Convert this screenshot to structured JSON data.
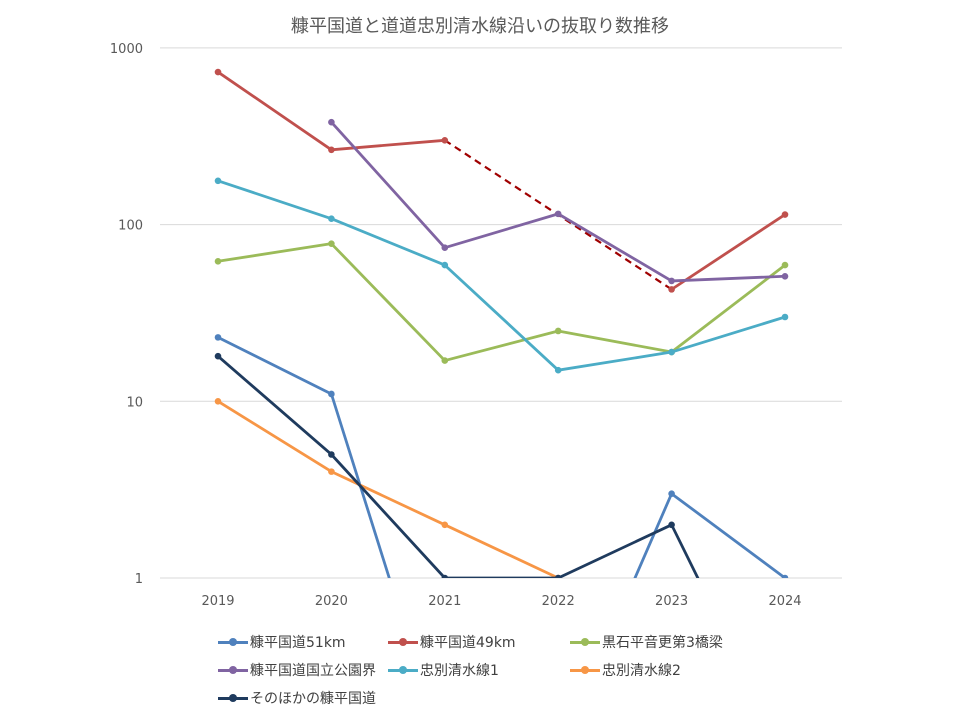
{
  "chart_data": {
    "type": "line",
    "title": "糠平国道と道道忠別清水線沿いの抜取り数推移",
    "xlabel": "",
    "ylabel": "",
    "yscale": "log",
    "ylim": [
      1,
      1000
    ],
    "y_ticks": [
      "1",
      "10",
      "100",
      "1000"
    ],
    "y_tick_values": [
      1,
      10,
      100,
      1000
    ],
    "categories": [
      "2019",
      "2020",
      "2021",
      "2022",
      "2023",
      "2024"
    ],
    "grid": true,
    "legend_position": "bottom",
    "series": [
      {
        "name": "糠平国道51km",
        "color": "#4f81bd",
        "values": [
          23,
          11,
          0,
          0,
          3,
          1
        ]
      },
      {
        "name": "糠平国道49km",
        "color": "#c0504d",
        "values": [
          730,
          265,
          300,
          null,
          43,
          114
        ]
      },
      {
        "name": "黒石平音更第3橋梁",
        "color": "#9bbb59",
        "values": [
          62,
          78,
          17,
          25,
          19,
          59
        ]
      },
      {
        "name": "糠平国道国立公園界",
        "color": "#8064a2",
        "values": [
          null,
          380,
          74,
          115,
          48,
          51
        ]
      },
      {
        "name": "忠別清水線1",
        "color": "#4bacc6",
        "values": [
          177,
          108,
          59,
          15,
          19,
          30
        ]
      },
      {
        "name": "忠別清水線2",
        "color": "#f79646",
        "values": [
          10,
          4,
          2,
          1,
          null,
          null
        ]
      },
      {
        "name": "そのほかの糠平国道",
        "color": "#1f3b5e",
        "values": [
          18,
          5,
          1,
          1,
          2,
          0
        ]
      }
    ],
    "annotations": [
      {
        "type": "dashed-connector",
        "series": "糠平国道49km",
        "from": "2021",
        "to": "2023",
        "color": "#a00000"
      }
    ]
  }
}
